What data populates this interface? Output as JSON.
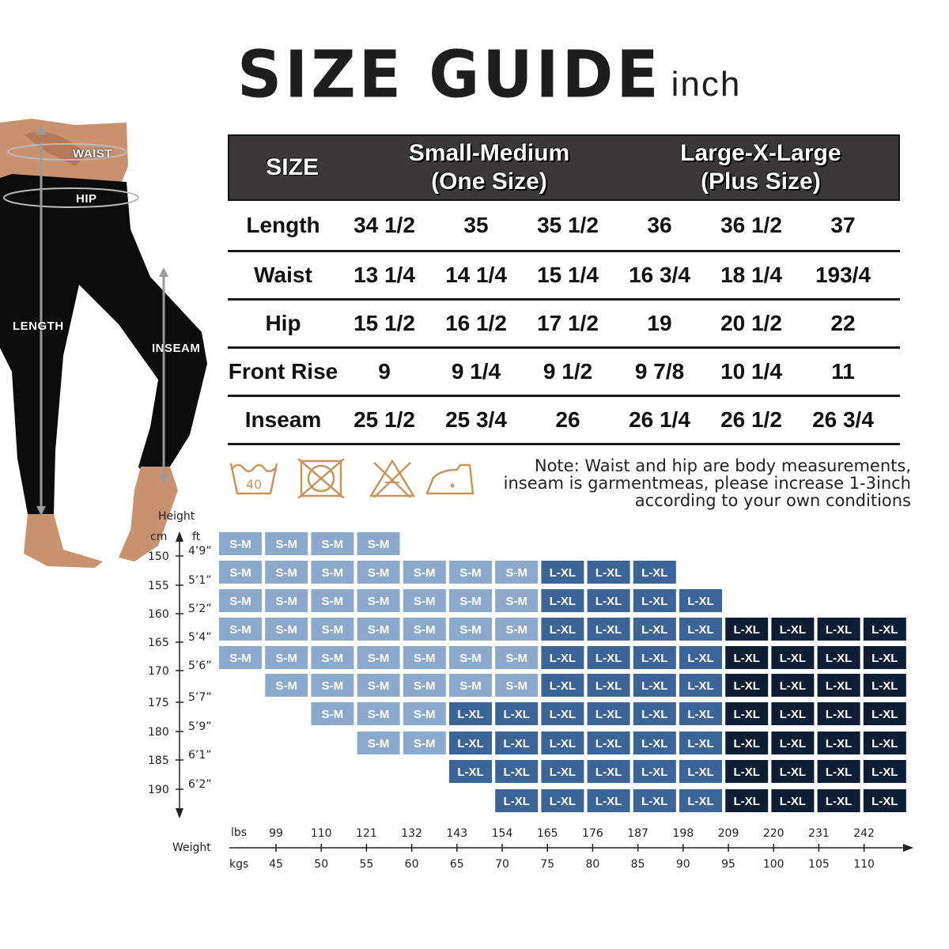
{
  "title": {
    "main": "SIZE GUIDE",
    "unit": "inch"
  },
  "figure": {
    "labels": {
      "waist": "WAIST",
      "hip": "HIP",
      "length": "LENGTH",
      "inseam": "INSEAM"
    }
  },
  "size_table": {
    "header": {
      "size": "SIZE",
      "group1_line1": "Small-Medium",
      "group1_line2": "(One Size)",
      "group2_line1": "Large-X-Large",
      "group2_line2": "(Plus Size)"
    },
    "rows": [
      {
        "label": "Length",
        "values": [
          "34 1/2",
          "35",
          "35 1/2",
          "36",
          "36 1/2",
          "37"
        ]
      },
      {
        "label": "Waist",
        "values": [
          "13 1/4",
          "14 1/4",
          "15 1/4",
          "16 3/4",
          "18 1/4",
          "193/4"
        ]
      },
      {
        "label": "Hip",
        "values": [
          "15 1/2",
          "16 1/2",
          "17 1/2",
          "19",
          "20 1/2",
          "22"
        ]
      },
      {
        "label": "Front Rise",
        "values": [
          "9",
          "9 1/4",
          "9 1/2",
          "9 7/8",
          "10 1/4",
          "11"
        ]
      },
      {
        "label": "Inseam",
        "values": [
          "25 1/2",
          "25 3/4",
          "26",
          "26 1/4",
          "26 1/2",
          "26 3/4"
        ]
      }
    ]
  },
  "care": {
    "wash_temp": "40",
    "icons": [
      "wash-40-icon",
      "no-tumble-dry-icon",
      "no-bleach-icon",
      "iron-low-icon"
    ],
    "color": "#c8955a"
  },
  "note": {
    "line1": "Note: Waist and hip are body measurements,",
    "line2": "inseam is garmentmeas, please increase 1-3inch",
    "line3": "according to your own conditions"
  },
  "chart_data": {
    "type": "table",
    "height_label": "Height",
    "cm_label": "cm",
    "ft_label": "ft",
    "weight_label": "Weight",
    "lbs_label": "lbs",
    "kgs_label": "kgs",
    "heights_cm": [
      "150",
      "155",
      "160",
      "165",
      "170",
      "175",
      "180",
      "185",
      "190"
    ],
    "heights_ft": [
      "4’9”",
      "5’1”",
      "5’2”",
      "5’4”",
      "5’6”",
      "5’7”",
      "5’9”",
      "6’1”",
      "6’2”"
    ],
    "weights_lbs": [
      "99",
      "110",
      "121",
      "132",
      "143",
      "154",
      "165",
      "176",
      "187",
      "198",
      "209",
      "220",
      "231",
      "242"
    ],
    "weights_kgs": [
      "45",
      "50",
      "55",
      "60",
      "65",
      "70",
      "75",
      "80",
      "85",
      "90",
      "95",
      "100",
      "105",
      "110"
    ],
    "size_labels": {
      "s": "S-M",
      "l": "L-XL"
    },
    "colors": {
      "sm": "#8aa9cc",
      "lxl_mid": "#3a6596",
      "lxl_dark": "#0f1d35"
    },
    "grid": [
      {
        "start": 0,
        "cells": [
          "S-M",
          "S-M",
          "S-M",
          "S-M"
        ]
      },
      {
        "start": 0,
        "cells": [
          "S-M",
          "S-M",
          "S-M",
          "S-M",
          "S-M",
          "S-M",
          "S-M",
          "L-XL",
          "L-XL",
          "L-XL"
        ]
      },
      {
        "start": 0,
        "cells": [
          "S-M",
          "S-M",
          "S-M",
          "S-M",
          "S-M",
          "S-M",
          "S-M",
          "L-XL",
          "L-XL",
          "L-XL",
          "L-XL"
        ]
      },
      {
        "start": 0,
        "cells": [
          "S-M",
          "S-M",
          "S-M",
          "S-M",
          "S-M",
          "S-M",
          "S-M",
          "L-XL",
          "L-XL",
          "L-XL",
          "L-XL",
          "L-XL",
          "L-XL",
          "L-XL",
          "L-XL"
        ]
      },
      {
        "start": 0,
        "cells": [
          "S-M",
          "S-M",
          "S-M",
          "S-M",
          "S-M",
          "S-M",
          "S-M",
          "L-XL",
          "L-XL",
          "L-XL",
          "L-XL",
          "L-XL",
          "L-XL",
          "L-XL",
          "L-XL"
        ]
      },
      {
        "start": 1,
        "cells": [
          "S-M",
          "S-M",
          "S-M",
          "S-M",
          "S-M",
          "S-M",
          "L-XL",
          "L-XL",
          "L-XL",
          "L-XL",
          "L-XL",
          "L-XL",
          "L-XL",
          "L-XL"
        ]
      },
      {
        "start": 2,
        "cells": [
          "S-M",
          "S-M",
          "S-M",
          "L-XL",
          "L-XL",
          "L-XL",
          "L-XL",
          "L-XL",
          "L-XL",
          "L-XL",
          "L-XL",
          "L-XL",
          "L-XL"
        ]
      },
      {
        "start": 3,
        "cells": [
          "S-M",
          "S-M",
          "L-XL",
          "L-XL",
          "L-XL",
          "L-XL",
          "L-XL",
          "L-XL",
          "L-XL",
          "L-XL",
          "L-XL",
          "L-XL"
        ]
      },
      {
        "start": 5,
        "cells": [
          "L-XL",
          "L-XL",
          "L-XL",
          "L-XL",
          "L-XL",
          "L-XL",
          "L-XL",
          "L-XL",
          "L-XL",
          "L-XL"
        ]
      },
      {
        "start": 6,
        "cells": [
          "L-XL",
          "L-XL",
          "L-XL",
          "L-XL",
          "L-XL",
          "L-XL",
          "L-XL",
          "L-XL",
          "L-XL"
        ]
      }
    ]
  }
}
